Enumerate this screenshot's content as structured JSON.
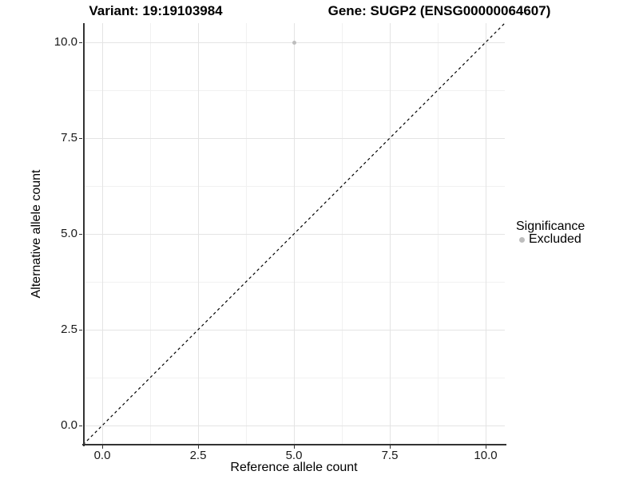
{
  "figure": {
    "variant_title": "Variant: 19:19103984",
    "gene_title": "Gene: SUGP2 (ENSG00000064607)"
  },
  "legend": {
    "title": "Significance",
    "items": [
      {
        "label": "Excluded",
        "color": "#bdbdbd"
      }
    ]
  },
  "chart_data": {
    "type": "scatter",
    "titles": [
      "Variant: 19:19103984",
      "Gene: SUGP2 (ENSG00000064607)"
    ],
    "xlabel": "Reference allele count",
    "ylabel": "Alternative allele count",
    "xlim": [
      -0.5,
      10.5
    ],
    "ylim": [
      -0.5,
      10.5
    ],
    "x_ticks": {
      "values": [
        0,
        2.5,
        5,
        7.5,
        10
      ],
      "labels": [
        "0.0",
        "2.5",
        "5.0",
        "7.5",
        "10.0"
      ]
    },
    "y_ticks": {
      "values": [
        0,
        2.5,
        5,
        7.5,
        10
      ],
      "labels": [
        "0.0",
        "2.5",
        "5.0",
        "7.5",
        "10.0"
      ]
    },
    "x_minor": [
      1.25,
      3.75,
      6.25,
      8.75
    ],
    "y_minor": [
      1.25,
      3.75,
      6.25,
      8.75
    ],
    "grid": "major+minor",
    "legend_position": "right",
    "points": [
      {
        "x": 5,
        "y": 10,
        "series": "Excluded"
      }
    ],
    "series_colors": {
      "Excluded": "#bdbdbd"
    },
    "point_radius_px": 2.5,
    "reference_line": {
      "slope": 1,
      "intercept": 0,
      "style": "dashed",
      "color": "#000000"
    }
  },
  "colors": {
    "background": "#ffffff",
    "grid_major": "#e4e4e4",
    "grid_minor": "#f1f1f1",
    "axis_line": "#333333",
    "tick_text": "#1a1a1a"
  }
}
